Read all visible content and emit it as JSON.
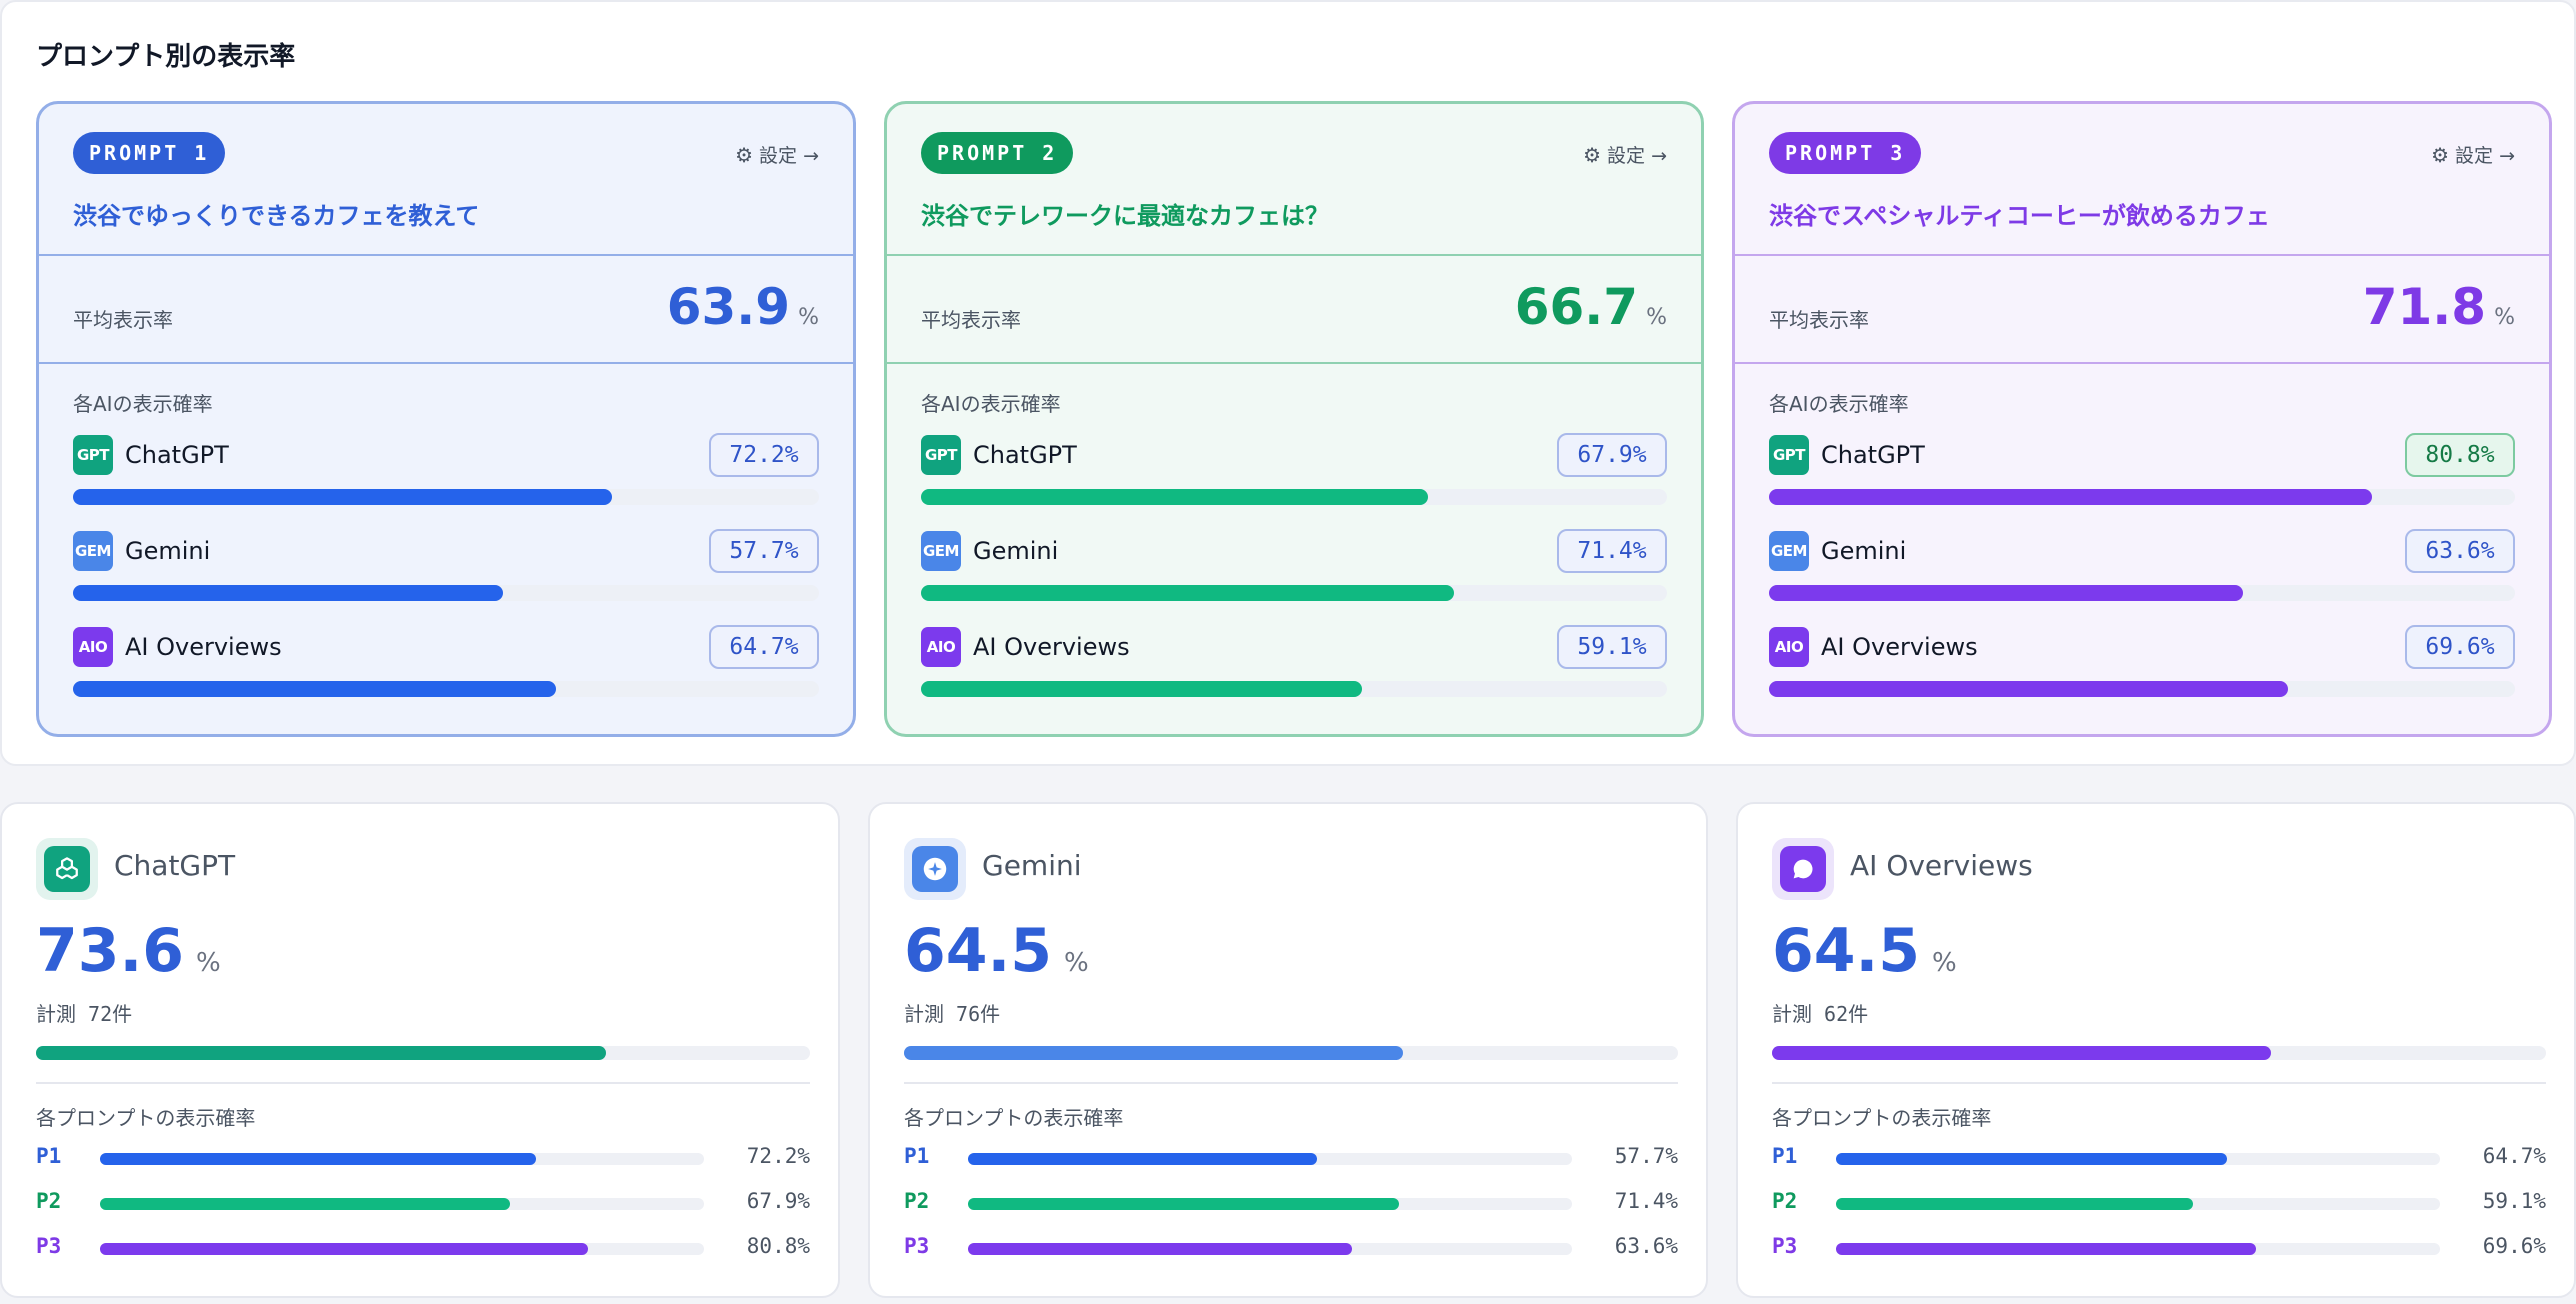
{
  "section_title": "プロンプト別の表示率",
  "settings_label": "設定 →",
  "avg_label": "平均表示率",
  "ai_sub_label": "各AIの表示確率",
  "prompt_sub_label": "各プロンプトの表示確率",
  "pct_unit": "%",
  "prompts": [
    {
      "pill": "PROMPT 1",
      "text": "渋谷でゆっくりできるカフェを教えて",
      "avg": "63.9",
      "accent": "#2f5fd6",
      "bar_color": "#2563eb",
      "card_bg": "#eff3fd",
      "border": "#93aee8",
      "rows": [
        {
          "badge": "GPT",
          "name": "ChatGPT",
          "value": "72.2%",
          "level": 72.2,
          "highlight": false
        },
        {
          "badge": "GEM",
          "name": "Gemini",
          "value": "57.7%",
          "level": 57.7,
          "highlight": false
        },
        {
          "badge": "AIO",
          "name": "AI Overviews",
          "value": "64.7%",
          "level": 64.7,
          "highlight": false
        }
      ]
    },
    {
      "pill": "PROMPT 2",
      "text": "渋谷でテレワークに最適なカフェは？",
      "avg": "66.7",
      "accent": "#0f9a5e",
      "bar_color": "#10b981",
      "card_bg": "#f1f9f5",
      "border": "#8fd1b1",
      "rows": [
        {
          "badge": "GPT",
          "name": "ChatGPT",
          "value": "67.9%",
          "level": 67.9,
          "highlight": false
        },
        {
          "badge": "GEM",
          "name": "Gemini",
          "value": "71.4%",
          "level": 71.4,
          "highlight": false
        },
        {
          "badge": "AIO",
          "name": "AI Overviews",
          "value": "59.1%",
          "level": 59.1,
          "highlight": false
        }
      ]
    },
    {
      "pill": "PROMPT 3",
      "text": "渋谷でスペシャルティコーヒーが飲めるカフェ",
      "avg": "71.8",
      "accent": "#7e3ae6",
      "bar_color": "#7c3aed",
      "card_bg": "#f7f3fd",
      "border": "#c4a6ee",
      "rows": [
        {
          "badge": "GPT",
          "name": "ChatGPT",
          "value": "80.8%",
          "level": 80.8,
          "highlight": true
        },
        {
          "badge": "GEM",
          "name": "Gemini",
          "value": "63.6%",
          "level": 63.6,
          "highlight": false
        },
        {
          "badge": "AIO",
          "name": "AI Overviews",
          "value": "69.6%",
          "level": 69.6,
          "highlight": false
        }
      ]
    }
  ],
  "badge_colors": {
    "GPT": "#10a37f",
    "GEM": "#4a86e8",
    "AIO": "#7c3aed"
  },
  "engines": [
    {
      "name": "ChatGPT",
      "value": "73.6",
      "level": 73.6,
      "count": "計測 72件",
      "color": "#10a37f",
      "icon": "openai-icon",
      "prompts": [
        {
          "label": "P1",
          "value": "72.2%",
          "level": 72.2
        },
        {
          "label": "P2",
          "value": "67.9%",
          "level": 67.9
        },
        {
          "label": "P3",
          "value": "80.8%",
          "level": 80.8
        }
      ]
    },
    {
      "name": "Gemini",
      "value": "64.5",
      "level": 64.5,
      "count": "計測 76件",
      "color": "#4a86e8",
      "icon": "sparkle-icon",
      "prompts": [
        {
          "label": "P1",
          "value": "57.7%",
          "level": 57.7
        },
        {
          "label": "P2",
          "value": "71.4%",
          "level": 71.4
        },
        {
          "label": "P3",
          "value": "63.6%",
          "level": 63.6
        }
      ]
    },
    {
      "name": "AI Overviews",
      "value": "64.5",
      "level": 64.5,
      "count": "計測 62件",
      "color": "#7c3aed",
      "icon": "chat-bubble-icon",
      "prompts": [
        {
          "label": "P1",
          "value": "64.7%",
          "level": 64.7
        },
        {
          "label": "P2",
          "value": "59.1%",
          "level": 59.1
        },
        {
          "label": "P3",
          "value": "69.6%",
          "level": 69.6
        }
      ]
    }
  ],
  "prompt_colors": {
    "P1": "#2563eb",
    "P2": "#10b981",
    "P3": "#7c3aed"
  },
  "prompt_label_colors": {
    "P1": "#2f5fd6",
    "P2": "#0f9a5e",
    "P3": "#7e3ae6"
  }
}
